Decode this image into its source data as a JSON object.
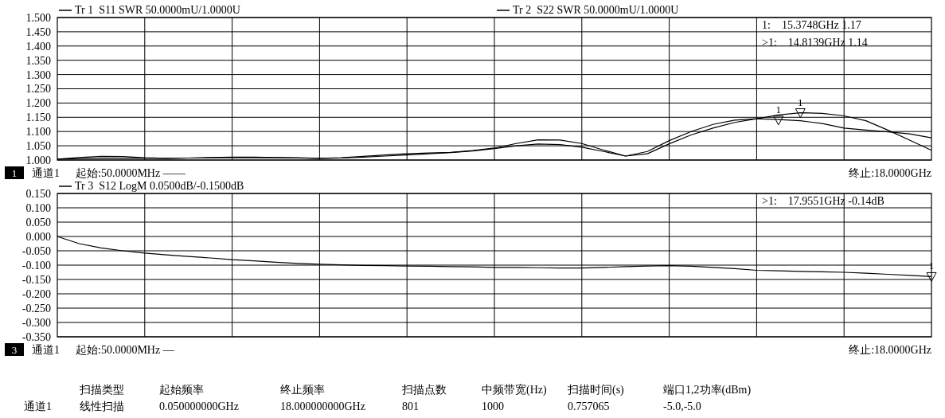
{
  "chart_data": [
    {
      "type": "line",
      "categories": [
        null,
        null,
        null,
        null,
        null,
        null,
        null,
        null,
        null,
        null,
        null,
        null,
        null,
        null,
        null,
        null,
        null,
        null,
        null,
        null,
        null,
        null,
        null,
        null,
        null,
        null,
        null,
        null,
        null,
        null,
        null,
        null,
        null,
        null,
        null,
        null,
        null,
        null,
        null,
        null,
        null
      ],
      "ylim": [
        1.0,
        1.5
      ],
      "tick_labels": "y",
      "legend": "top left",
      "grid": true,
      "marker": "none",
      "line_style": "solid",
      "yticks": [
        {
          "value": 1.0,
          "label": "1.000"
        },
        {
          "value": 1.05,
          "label": "1.050"
        },
        {
          "value": 1.1,
          "label": "1.100"
        },
        {
          "value": 1.15,
          "label": "1.150"
        },
        {
          "value": 1.2,
          "label": "1.200"
        },
        {
          "value": 1.25,
          "label": "1.250"
        },
        {
          "value": 1.3,
          "label": "1.300"
        },
        {
          "value": 1.35,
          "label": "1.350"
        },
        {
          "value": 1.4,
          "label": "1.400"
        },
        {
          "value": 1.45,
          "label": "1.450"
        },
        {
          "value": 1.5,
          "label": "1.500"
        }
      ],
      "series": [
        {
          "name": "Tr 1  S11 SWR 50.0000mU/1.0000U",
          "color": "#000000",
          "values": [
            1.003,
            1.009,
            1.013,
            1.012,
            1.008,
            1.006,
            1.007,
            1.009,
            1.01,
            1.01,
            1.009,
            1.008,
            1.006,
            1.008,
            1.013,
            1.018,
            1.022,
            1.025,
            1.027,
            1.033,
            1.042,
            1.058,
            1.071,
            1.07,
            1.058,
            1.035,
            1.014,
            1.03,
            1.068,
            1.1,
            1.125,
            1.14,
            1.145,
            1.142,
            1.138,
            1.128,
            1.112,
            1.105,
            1.099,
            1.092,
            1.078
          ]
        },
        {
          "name": "Tr 2  S22 SWR 50.0000mU/1.0000U",
          "color": "#000000",
          "values": [
            1.003,
            1.005,
            1.006,
            1.006,
            1.006,
            1.006,
            1.007,
            1.008,
            1.008,
            1.008,
            1.008,
            1.007,
            1.006,
            1.007,
            1.01,
            1.014,
            1.018,
            1.022,
            1.026,
            1.032,
            1.04,
            1.05,
            1.056,
            1.054,
            1.045,
            1.03,
            1.014,
            1.022,
            1.057,
            1.088,
            1.112,
            1.132,
            1.145,
            1.158,
            1.166,
            1.164,
            1.155,
            1.138,
            1.105,
            1.07,
            1.034
          ]
        },
        {
          "name": "1",
          "type": "scatter",
          "marker": "triangle",
          "color": "#000000",
          "values": [
            null,
            null,
            null,
            null,
            null,
            null,
            null,
            null,
            null,
            null,
            null,
            null,
            null,
            null,
            null,
            null,
            null,
            null,
            null,
            null,
            null,
            null,
            null,
            null,
            null,
            null,
            null,
            null,
            null,
            null,
            null,
            null,
            null,
            1.14,
            null,
            null,
            null,
            null,
            null,
            null,
            null
          ]
        },
        {
          "name": "1",
          "type": "scatter",
          "marker": "triangle",
          "color": "#000000",
          "values": [
            null,
            null,
            null,
            null,
            null,
            null,
            null,
            null,
            null,
            null,
            null,
            null,
            null,
            null,
            null,
            null,
            null,
            null,
            null,
            null,
            null,
            null,
            null,
            null,
            null,
            null,
            null,
            null,
            null,
            null,
            null,
            null,
            null,
            null,
            1.166,
            null,
            null,
            null,
            null,
            null,
            null
          ]
        }
      ],
      "annotations": [
        "1",
        "通道1",
        "起始:50.0000MHz ——",
        "终止:18.0000GHz",
        "1:    15.3748GHz 1.17",
        ">1:    14.8139GHz 1.14"
      ]
    },
    {
      "type": "line",
      "categories": [
        null,
        null,
        null,
        null,
        null,
        null,
        null,
        null,
        null,
        null,
        null,
        null,
        null,
        null,
        null,
        null,
        null,
        null,
        null,
        null,
        null,
        null,
        null,
        null,
        null,
        null,
        null,
        null,
        null,
        null,
        null,
        null,
        null,
        null,
        null,
        null,
        null,
        null,
        null,
        null,
        null
      ],
      "ylim": [
        -0.35,
        0.15
      ],
      "tick_labels": "y",
      "legend": "top left",
      "grid": true,
      "marker": "none",
      "line_style": "solid",
      "yticks": [
        {
          "value": -0.35,
          "label": "-0.350"
        },
        {
          "value": -0.3,
          "label": "-0.300"
        },
        {
          "value": -0.25,
          "label": "-0.250"
        },
        {
          "value": -0.2,
          "label": "-0.200"
        },
        {
          "value": -0.15,
          "label": "-0.150"
        },
        {
          "value": -0.1,
          "label": "-0.100"
        },
        {
          "value": -0.05,
          "label": "-0.050"
        },
        {
          "value": 0,
          "label": "0.000"
        },
        {
          "value": 0.05,
          "label": "0.050"
        },
        {
          "value": 0.1,
          "label": "0.100"
        },
        {
          "value": 0.15,
          "label": "0.150"
        }
      ],
      "series": [
        {
          "name": "Tr 3  S12 LogM 0.0500dB/-0.1500dB",
          "color": "#000000",
          "values": [
            0.0,
            -0.025,
            -0.04,
            -0.05,
            -0.058,
            -0.064,
            -0.07,
            -0.075,
            -0.081,
            -0.085,
            -0.09,
            -0.094,
            -0.097,
            -0.099,
            -0.101,
            -0.102,
            -0.103,
            -0.104,
            -0.105,
            -0.106,
            -0.108,
            -0.108,
            -0.109,
            -0.11,
            -0.11,
            -0.108,
            -0.105,
            -0.103,
            -0.102,
            -0.104,
            -0.108,
            -0.112,
            -0.118,
            -0.12,
            -0.122,
            -0.123,
            -0.125,
            -0.128,
            -0.132,
            -0.136,
            -0.14
          ]
        },
        {
          "name": "1",
          "type": "scatter",
          "marker": "triangle",
          "color": "#000000",
          "values": [
            null,
            null,
            null,
            null,
            null,
            null,
            null,
            null,
            null,
            null,
            null,
            null,
            null,
            null,
            null,
            null,
            null,
            null,
            null,
            null,
            null,
            null,
            null,
            null,
            null,
            null,
            null,
            null,
            null,
            null,
            null,
            null,
            null,
            null,
            null,
            null,
            null,
            null,
            null,
            null,
            -0.14
          ]
        }
      ],
      "annotations": [
        "3",
        "通道1",
        "起始:50.0000MHz —",
        "终止:18.0000GHz",
        ">1:    17.9551GHz -0.14dB"
      ]
    },
    {
      "type": "other",
      "annotations": [
        "扫描类型",
        "起始频率",
        "终止频率",
        "扫描点数",
        "中频带宽(Hz)",
        "扫描时间(s)",
        "端口1,2功率(dBm)",
        "通道1",
        "线性扫描",
        "0.050000000GHz",
        "18.000000000GHz",
        "801",
        "1000",
        "0.757065",
        "-5.0,-5.0"
      ]
    }
  ]
}
